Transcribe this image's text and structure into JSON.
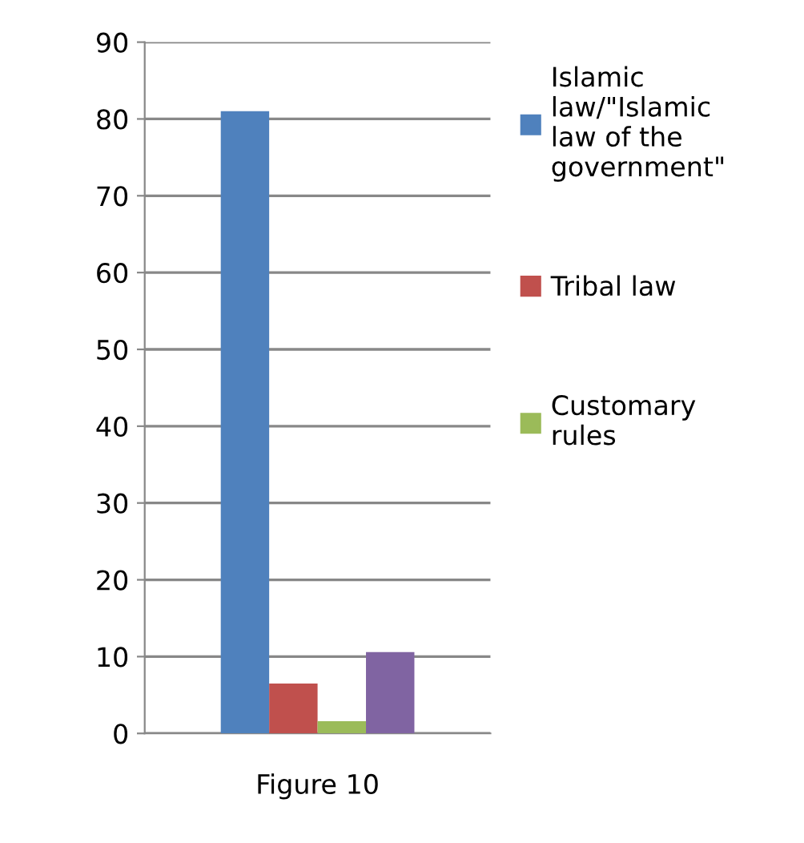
{
  "chart_data": {
    "type": "bar",
    "categories": [
      "Figure 10"
    ],
    "series": [
      {
        "name": "Islamic law/\"Islamic law of the government\"",
        "color": "#4f81bd",
        "values": [
          81
        ]
      },
      {
        "name": "Tribal law",
        "color": "#c0504d",
        "values": [
          6.5
        ]
      },
      {
        "name": "Customary rules",
        "color": "#9bbb59",
        "values": [
          1.6
        ]
      },
      {
        "color": "#8064a2",
        "values": [
          10.6
        ]
      }
    ],
    "ylim": [
      0,
      90
    ],
    "yticks": [
      0,
      10,
      20,
      30,
      40,
      50,
      60,
      70,
      80,
      90
    ],
    "grid": "y",
    "legend": "right"
  }
}
